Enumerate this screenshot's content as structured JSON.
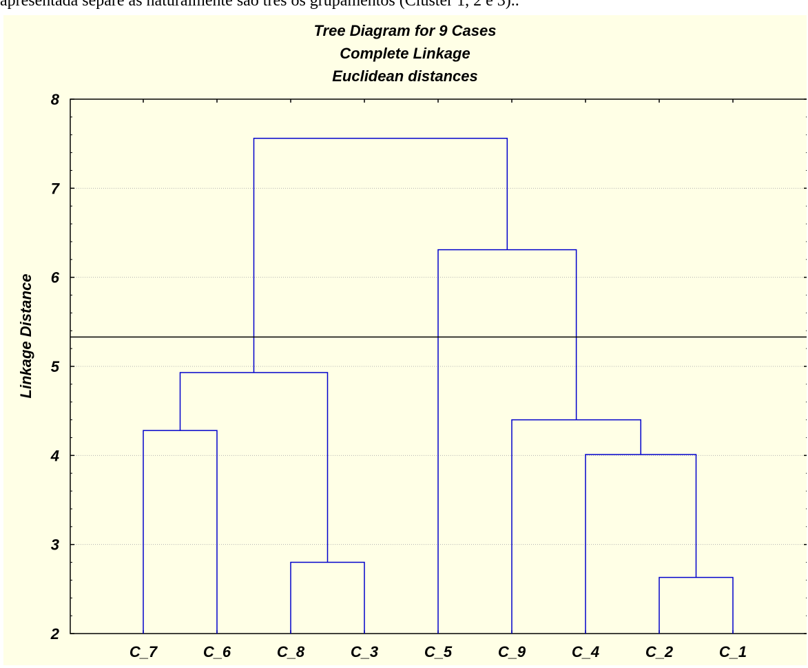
{
  "header_text": "apresentada separe as naturalmente são três os grupamentos (Cluster 1, 2 e 3)..",
  "chart_data": {
    "type": "dendrogram",
    "title": "Tree Diagram for 9 Cases",
    "subtitle_lines": [
      "Complete Linkage",
      "Euclidean distances"
    ],
    "xlabel": "",
    "ylabel": "Linkage Distance",
    "ylim": [
      2,
      8
    ],
    "yticks": [
      2,
      3,
      4,
      5,
      6,
      7,
      8
    ],
    "grid": true,
    "cut_line": 5.33,
    "leaves": [
      "C_7",
      "C_6",
      "C_8",
      "C_3",
      "C_5",
      "C_9",
      "C_4",
      "C_2",
      "C_1"
    ],
    "merges": [
      {
        "left": "C_2",
        "right": "C_1",
        "height": 2.63
      },
      {
        "left": "C_8",
        "right": "C_3",
        "height": 2.8
      },
      {
        "left": "C_4",
        "right": "C_2+C_1",
        "height": 4.01
      },
      {
        "left": "C_7",
        "right": "C_6",
        "height": 4.28
      },
      {
        "left": "C_9",
        "right": "C_4+C_2+C_1",
        "height": 4.4
      },
      {
        "left": "C_7+C_6",
        "right": "C_8+C_3",
        "height": 4.93
      },
      {
        "left": "C_5",
        "right": "C_9+C_4+C_2+C_1",
        "height": 6.31
      },
      {
        "left": "C_7+C_6+C_8+C_3",
        "right": "C_5+C_9+C_4+C_2+C_1",
        "height": 7.56
      }
    ],
    "colors": {
      "tree": "#0000cc",
      "cut_line": "#000000",
      "background": "#ffffe6",
      "grid": "#b0b0b0"
    }
  }
}
